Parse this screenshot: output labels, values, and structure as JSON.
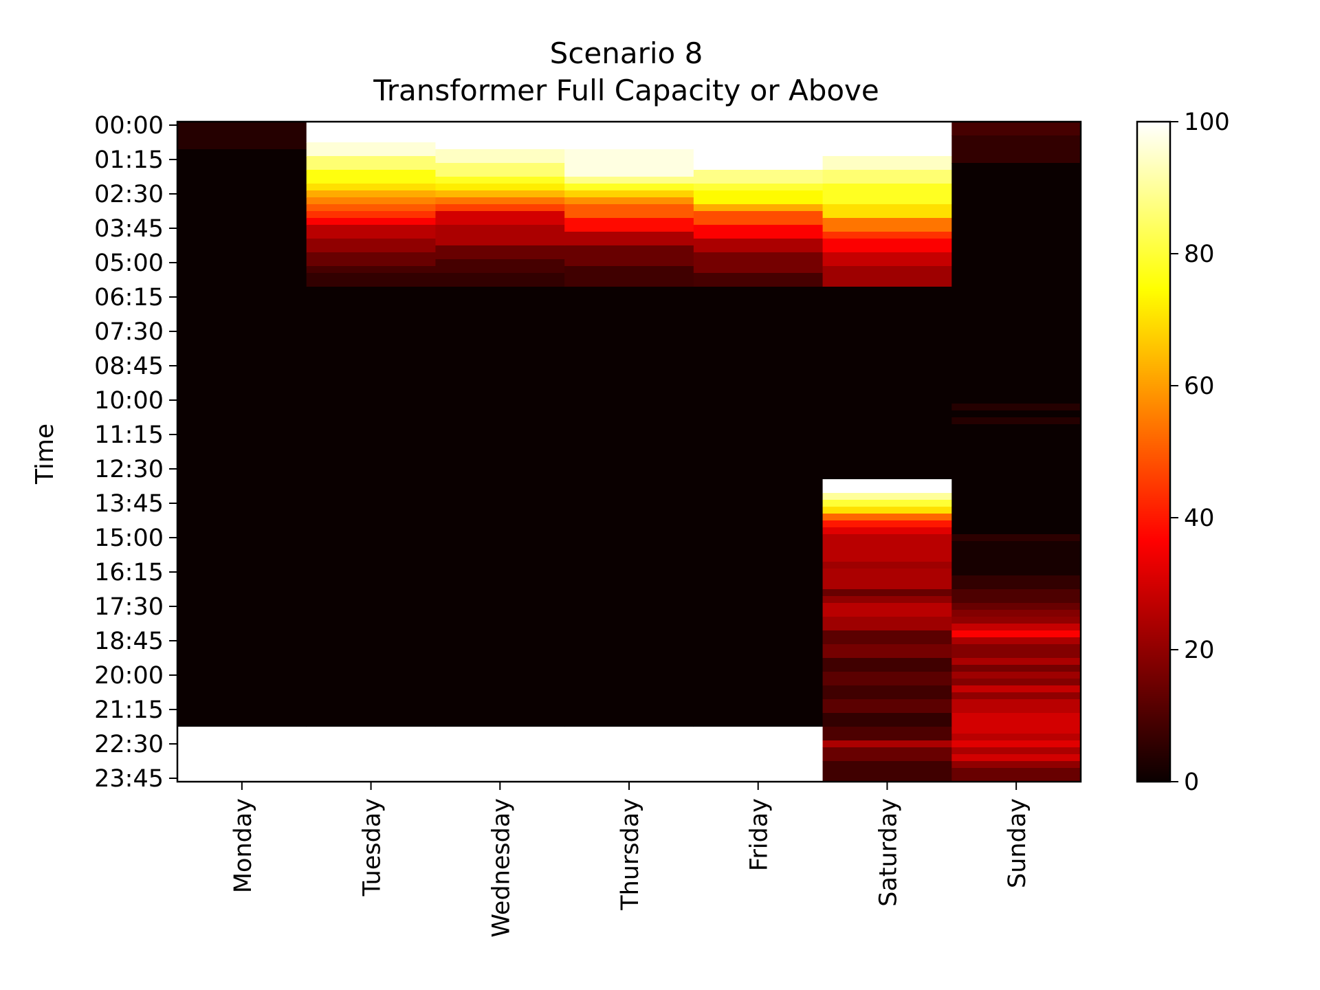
{
  "chart_data": {
    "type": "heatmap",
    "title": "Scenario 8",
    "subtitle": "Transformer Full Capacity or Above",
    "xlabel": "",
    "ylabel": "Time",
    "x_categories": [
      "Monday",
      "Tuesday",
      "Wednesday",
      "Thursday",
      "Friday",
      "Saturday",
      "Sunday"
    ],
    "y_tick_labels": [
      "00:00",
      "01:15",
      "02:30",
      "03:45",
      "05:00",
      "06:15",
      "07:30",
      "08:45",
      "10:00",
      "11:15",
      "12:30",
      "13:45",
      "15:00",
      "16:15",
      "17:30",
      "18:45",
      "20:00",
      "21:15",
      "22:30",
      "23:45"
    ],
    "y_interval_minutes": 15,
    "n_rows": 96,
    "colormap": "hot",
    "colorbar": {
      "vmin": 0,
      "vmax": 100,
      "ticks": [
        0,
        20,
        40,
        60,
        80,
        100
      ]
    },
    "columns": {
      "Monday": [
        [
          0,
          4,
          4
        ],
        [
          4,
          96,
          0
        ],
        [
          88,
          96,
          100
        ]
      ],
      "Tuesday": [
        [
          0,
          3,
          100
        ],
        [
          3,
          5,
          96
        ],
        [
          5,
          7,
          86
        ],
        [
          7,
          9,
          76
        ],
        [
          9,
          10,
          70
        ],
        [
          10,
          11,
          62
        ],
        [
          11,
          12,
          56
        ],
        [
          12,
          13,
          50
        ],
        [
          13,
          14,
          44
        ],
        [
          14,
          15,
          36
        ],
        [
          15,
          17,
          26
        ],
        [
          17,
          19,
          20
        ],
        [
          19,
          21,
          14
        ],
        [
          21,
          22,
          9
        ],
        [
          22,
          24,
          6
        ],
        [
          24,
          96,
          0
        ],
        [
          88,
          96,
          100
        ]
      ],
      "Wednesday": [
        [
          0,
          4,
          100
        ],
        [
          4,
          6,
          94
        ],
        [
          6,
          8,
          86
        ],
        [
          8,
          9,
          78
        ],
        [
          9,
          10,
          72
        ],
        [
          10,
          11,
          64
        ],
        [
          11,
          12,
          54
        ],
        [
          12,
          13,
          46
        ],
        [
          13,
          15,
          30
        ],
        [
          15,
          18,
          24
        ],
        [
          18,
          20,
          14
        ],
        [
          20,
          22,
          9
        ],
        [
          22,
          24,
          6
        ],
        [
          24,
          96,
          0
        ],
        [
          88,
          96,
          100
        ]
      ],
      "Thursday": [
        [
          0,
          4,
          100
        ],
        [
          4,
          8,
          97
        ],
        [
          8,
          9,
          88
        ],
        [
          9,
          10,
          78
        ],
        [
          10,
          11,
          68
        ],
        [
          11,
          12,
          58
        ],
        [
          12,
          14,
          50
        ],
        [
          14,
          16,
          38
        ],
        [
          16,
          18,
          24
        ],
        [
          18,
          21,
          14
        ],
        [
          21,
          24,
          8
        ],
        [
          24,
          96,
          0
        ],
        [
          88,
          96,
          100
        ]
      ],
      "Friday": [
        [
          0,
          7,
          100
        ],
        [
          7,
          9,
          88
        ],
        [
          9,
          10,
          80
        ],
        [
          10,
          12,
          74
        ],
        [
          12,
          13,
          62
        ],
        [
          13,
          15,
          48
        ],
        [
          15,
          17,
          36
        ],
        [
          17,
          19,
          24
        ],
        [
          19,
          22,
          16
        ],
        [
          22,
          24,
          9
        ],
        [
          24,
          96,
          0
        ],
        [
          88,
          96,
          100
        ]
      ],
      "Saturday": [
        [
          0,
          5,
          100
        ],
        [
          5,
          7,
          94
        ],
        [
          7,
          9,
          86
        ],
        [
          9,
          12,
          78
        ],
        [
          12,
          14,
          70
        ],
        [
          14,
          16,
          54
        ],
        [
          16,
          17,
          44
        ],
        [
          17,
          19,
          36
        ],
        [
          19,
          21,
          28
        ],
        [
          21,
          24,
          22
        ],
        [
          24,
          52,
          0
        ],
        [
          52,
          54,
          100
        ],
        [
          54,
          55,
          90
        ],
        [
          55,
          56,
          80
        ],
        [
          56,
          57,
          70
        ],
        [
          57,
          58,
          52
        ],
        [
          58,
          59,
          40
        ],
        [
          59,
          60,
          32
        ],
        [
          60,
          64,
          26
        ],
        [
          64,
          65,
          22
        ],
        [
          65,
          68,
          24
        ],
        [
          68,
          69,
          14
        ],
        [
          69,
          70,
          20
        ],
        [
          70,
          72,
          26
        ],
        [
          72,
          74,
          22
        ],
        [
          74,
          76,
          12
        ],
        [
          76,
          78,
          16
        ],
        [
          78,
          80,
          8
        ],
        [
          80,
          82,
          12
        ],
        [
          82,
          84,
          8
        ],
        [
          84,
          86,
          12
        ],
        [
          86,
          88,
          6
        ],
        [
          88,
          90,
          10
        ],
        [
          90,
          91,
          24
        ],
        [
          91,
          93,
          14
        ],
        [
          93,
          96,
          8
        ]
      ],
      "Sunday": [
        [
          0,
          2,
          9
        ],
        [
          2,
          6,
          6
        ],
        [
          6,
          41,
          0
        ],
        [
          41,
          42,
          4
        ],
        [
          42,
          43,
          0
        ],
        [
          43,
          44,
          4
        ],
        [
          44,
          60,
          0
        ],
        [
          60,
          61,
          5
        ],
        [
          61,
          66,
          2
        ],
        [
          66,
          68,
          6
        ],
        [
          68,
          70,
          10
        ],
        [
          70,
          71,
          14
        ],
        [
          71,
          72,
          18
        ],
        [
          72,
          73,
          20
        ],
        [
          73,
          74,
          28
        ],
        [
          74,
          75,
          36
        ],
        [
          75,
          76,
          24
        ],
        [
          76,
          78,
          18
        ],
        [
          78,
          79,
          24
        ],
        [
          79,
          80,
          16
        ],
        [
          80,
          81,
          22
        ],
        [
          81,
          82,
          18
        ],
        [
          82,
          83,
          28
        ],
        [
          83,
          84,
          20
        ],
        [
          84,
          86,
          26
        ],
        [
          86,
          89,
          30
        ],
        [
          89,
          90,
          26
        ],
        [
          90,
          91,
          32
        ],
        [
          91,
          92,
          24
        ],
        [
          92,
          93,
          30
        ],
        [
          93,
          94,
          20
        ],
        [
          94,
          96,
          14
        ]
      ]
    }
  }
}
